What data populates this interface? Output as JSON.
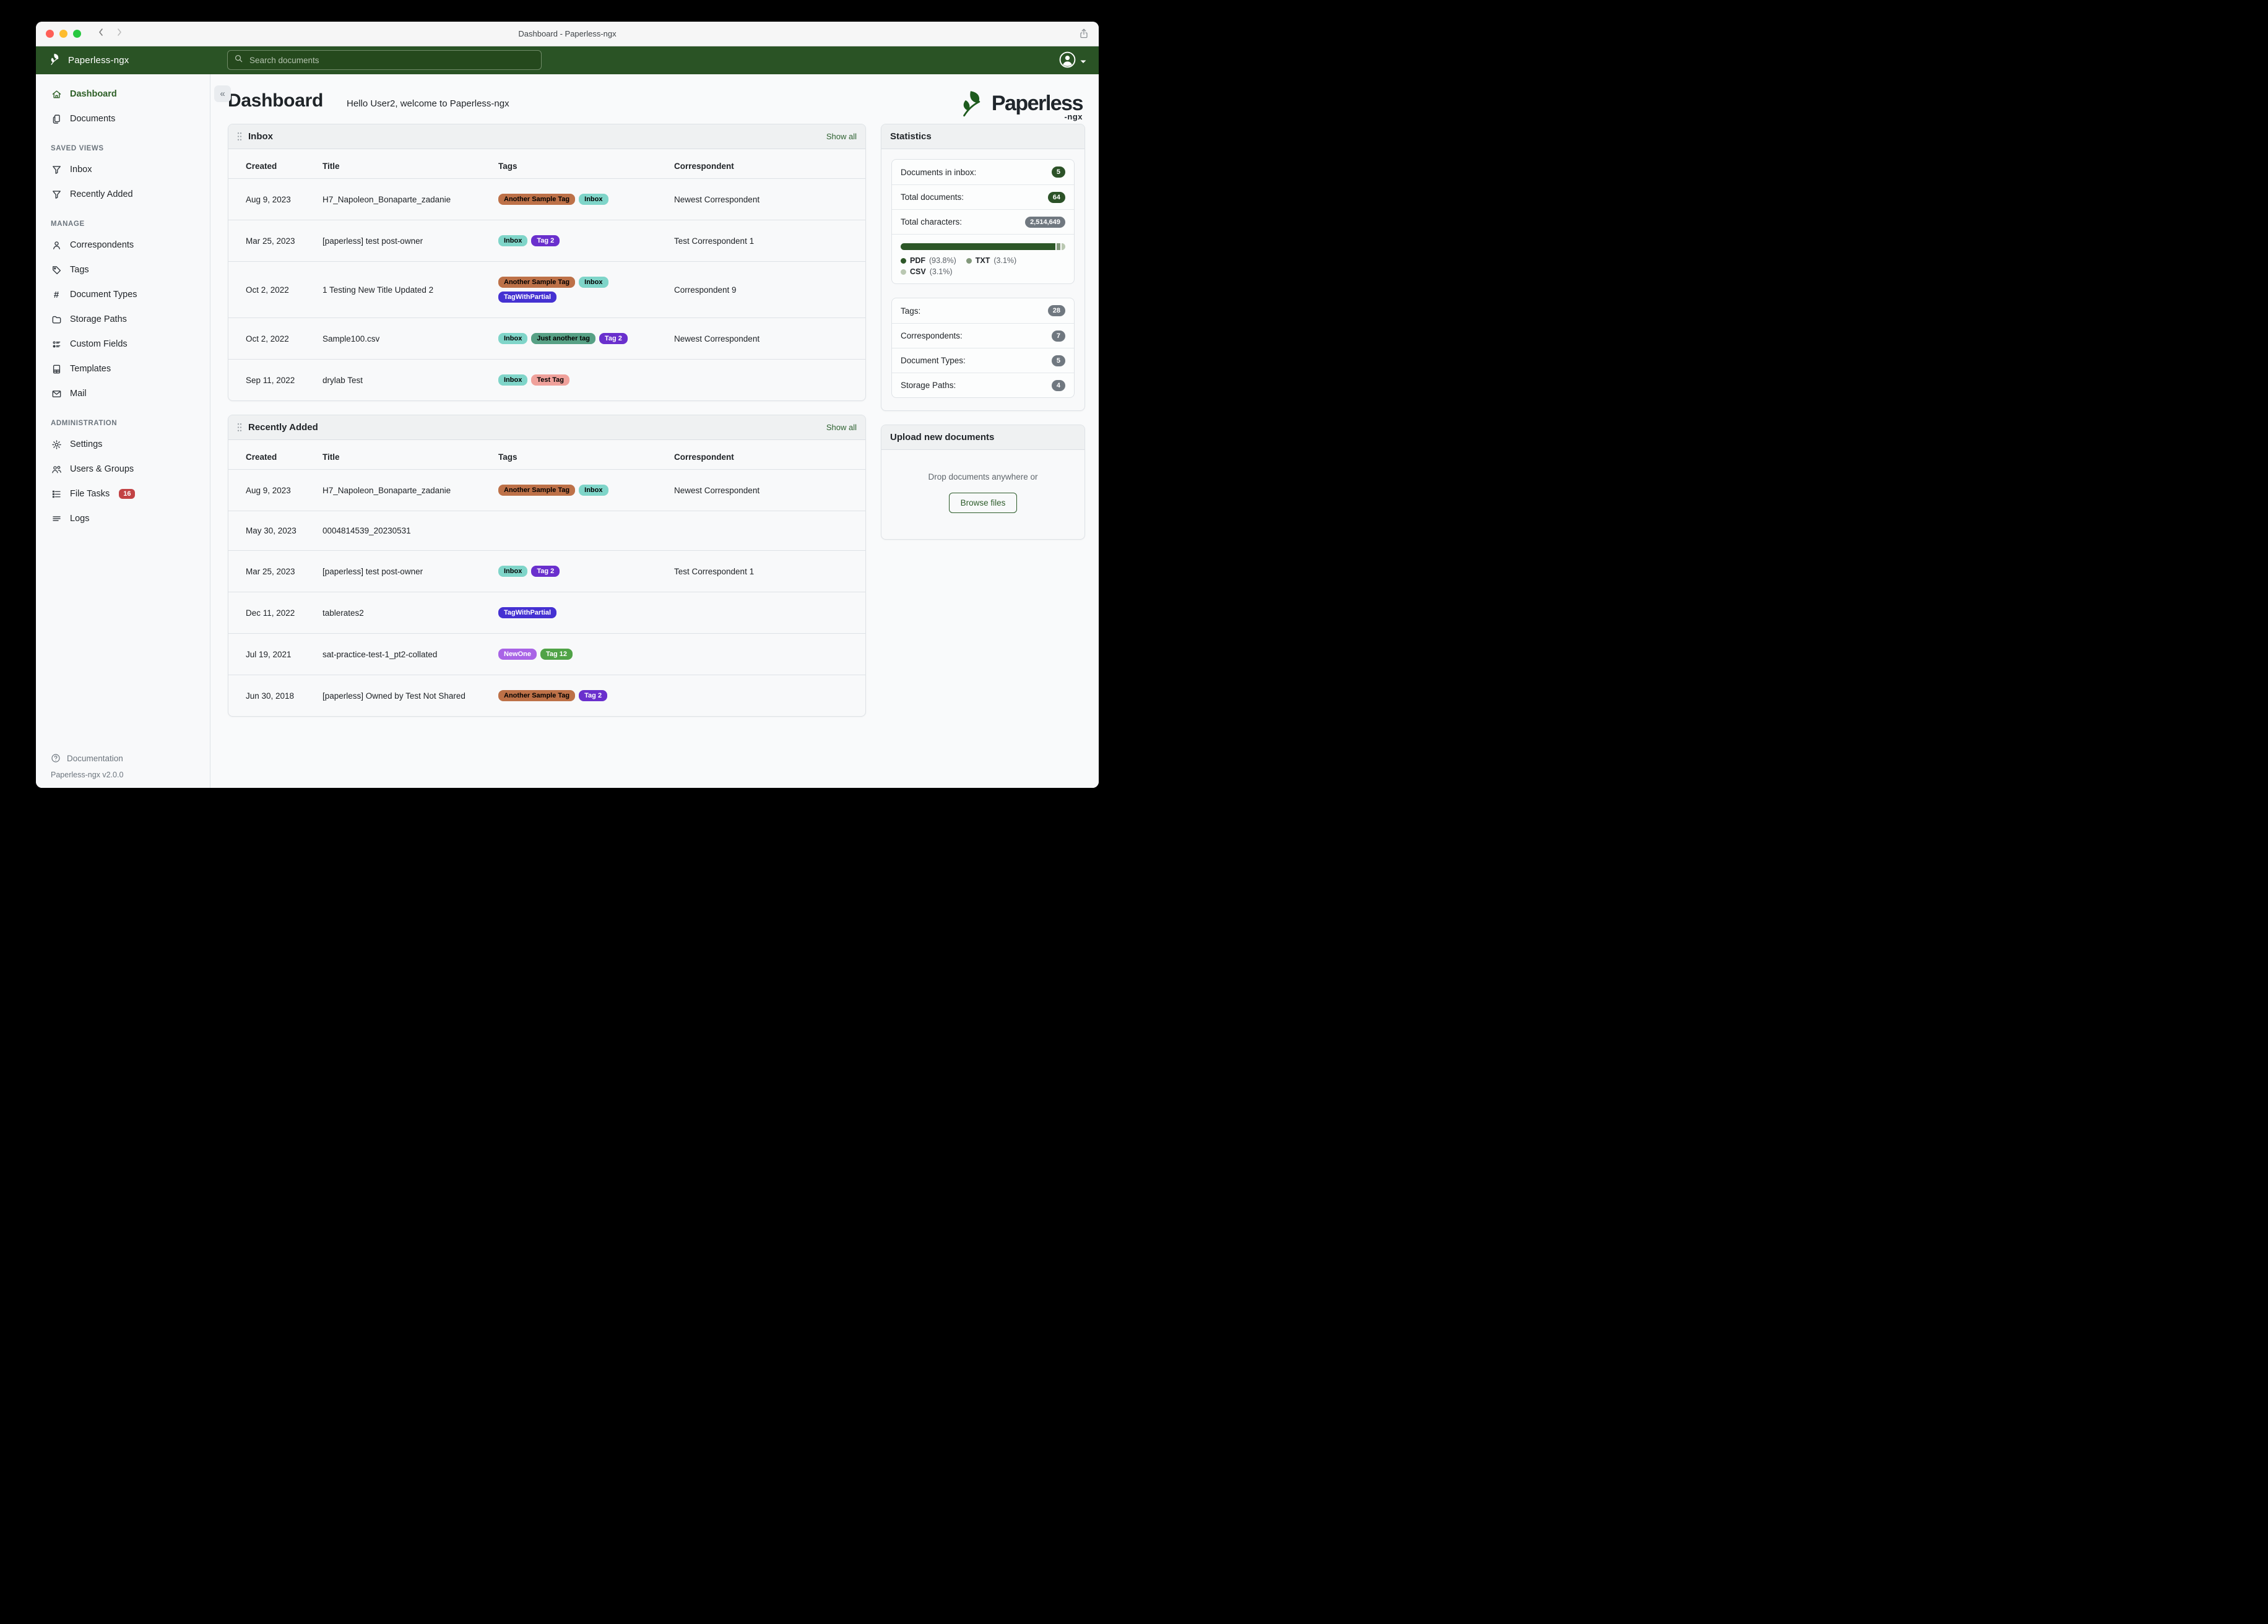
{
  "window": {
    "title": "Dashboard - Paperless-ngx"
  },
  "navbar": {
    "brand": "Paperless-ngx",
    "search_placeholder": "Search documents",
    "icons": [
      "leaf-logo-icon",
      "search-icon",
      "avatar-icon",
      "caret-down-icon"
    ]
  },
  "sidebar": {
    "groups": [
      {
        "heading": "",
        "items": [
          {
            "label": "Dashboard",
            "icon": "home-icon",
            "active": true
          },
          {
            "label": "Documents",
            "icon": "documents-icon",
            "active": false
          }
        ]
      },
      {
        "heading": "SAVED VIEWS",
        "items": [
          {
            "label": "Inbox",
            "icon": "filter-icon",
            "active": false
          },
          {
            "label": "Recently Added",
            "icon": "filter-icon",
            "active": false
          }
        ]
      },
      {
        "heading": "MANAGE",
        "items": [
          {
            "label": "Correspondents",
            "icon": "person-icon",
            "active": false
          },
          {
            "label": "Tags",
            "icon": "tag-icon",
            "active": false
          },
          {
            "label": "Document Types",
            "icon": "hash-icon",
            "active": false
          },
          {
            "label": "Storage Paths",
            "icon": "folder-icon",
            "active": false
          },
          {
            "label": "Custom Fields",
            "icon": "custom-fields-icon",
            "active": false
          },
          {
            "label": "Templates",
            "icon": "template-icon",
            "active": false
          },
          {
            "label": "Mail",
            "icon": "mail-icon",
            "active": false
          }
        ]
      },
      {
        "heading": "ADMINISTRATION",
        "items": [
          {
            "label": "Settings",
            "icon": "gear-icon",
            "active": false
          },
          {
            "label": "Users & Groups",
            "icon": "users-icon",
            "active": false
          },
          {
            "label": "File Tasks",
            "icon": "tasks-icon",
            "active": false,
            "badge": "16"
          },
          {
            "label": "Logs",
            "icon": "logs-icon",
            "active": false
          }
        ]
      }
    ],
    "footer": {
      "documentation": "Documentation",
      "icon": "question-icon",
      "version": "Paperless-ngx v2.0.0"
    }
  },
  "page": {
    "title": "Dashboard",
    "greeting": "Hello User2, welcome to Paperless-ngx"
  },
  "logo": {
    "main": "Paperless",
    "sub": "-ngx"
  },
  "cards": [
    {
      "title": "Inbox",
      "show_all": "Show all",
      "columns": [
        "Created",
        "Title",
        "Tags",
        "Correspondent"
      ],
      "rows": [
        {
          "created": "Aug 9, 2023",
          "title": "H7_Napoleon_Bonaparte_zadanie",
          "tags": [
            "Another Sample Tag",
            "Inbox"
          ],
          "correspondent": "Newest Correspondent"
        },
        {
          "created": "Mar 25, 2023",
          "title": "[paperless] test post-owner",
          "tags": [
            "Inbox",
            "Tag 2"
          ],
          "correspondent": "Test Correspondent 1"
        },
        {
          "created": "Oct 2, 2022",
          "title": "1 Testing New Title Updated 2",
          "tags": [
            "Another Sample Tag",
            "Inbox",
            "TagWithPartial"
          ],
          "correspondent": "Correspondent 9"
        },
        {
          "created": "Oct 2, 2022",
          "title": "Sample100.csv",
          "tags": [
            "Inbox",
            "Just another tag",
            "Tag 2"
          ],
          "correspondent": "Newest Correspondent"
        },
        {
          "created": "Sep 11, 2022",
          "title": "drylab Test",
          "tags": [
            "Inbox",
            "Test Tag"
          ],
          "correspondent": ""
        }
      ]
    },
    {
      "title": "Recently Added",
      "show_all": "Show all",
      "columns": [
        "Created",
        "Title",
        "Tags",
        "Correspondent"
      ],
      "rows": [
        {
          "created": "Aug 9, 2023",
          "title": "H7_Napoleon_Bonaparte_zadanie",
          "tags": [
            "Another Sample Tag",
            "Inbox"
          ],
          "correspondent": "Newest Correspondent"
        },
        {
          "created": "May 30, 2023",
          "title": "0004814539_20230531",
          "tags": [],
          "correspondent": ""
        },
        {
          "created": "Mar 25, 2023",
          "title": "[paperless] test post-owner",
          "tags": [
            "Inbox",
            "Tag 2"
          ],
          "correspondent": "Test Correspondent 1"
        },
        {
          "created": "Dec 11, 2022",
          "title": "tablerates2",
          "tags": [
            "TagWithPartial"
          ],
          "correspondent": ""
        },
        {
          "created": "Jul 19, 2021",
          "title": "sat-practice-test-1_pt2-collated",
          "tags": [
            "NewOne",
            "Tag 12"
          ],
          "correspondent": ""
        },
        {
          "created": "Jun 30, 2018",
          "title": "[paperless] Owned by Test Not Shared",
          "tags": [
            "Another Sample Tag",
            "Tag 2"
          ],
          "correspondent": ""
        }
      ]
    }
  ],
  "tag_colors": {
    "Another Sample Tag": {
      "bg": "#bd7148",
      "fg": "#000000"
    },
    "Inbox": {
      "bg": "#7fd5c9",
      "fg": "#000000"
    },
    "Tag 2": {
      "bg": "#6a30cd",
      "fg": "#ffffff"
    },
    "TagWithPartial": {
      "bg": "#4531d2",
      "fg": "#ffffff"
    },
    "Just another tag": {
      "bg": "#57a185",
      "fg": "#000000"
    },
    "Test Tag": {
      "bg": "#efa19b",
      "fg": "#000000"
    },
    "NewOne": {
      "bg": "#a964e6",
      "fg": "#ffffff"
    },
    "Tag 12": {
      "bg": "#50a347",
      "fg": "#ffffff"
    }
  },
  "statistics": {
    "title": "Statistics",
    "groups": [
      {
        "rows": [
          {
            "label": "Documents in inbox:",
            "value": "5",
            "badge": "green"
          },
          {
            "label": "Total documents:",
            "value": "64",
            "badge": "green"
          },
          {
            "label": "Total characters:",
            "value": "2,514,649",
            "badge": "gray"
          }
        ],
        "chart": {
          "type": "stacked-bar",
          "segments": [
            {
              "name": "PDF",
              "pct": "(93.8%)",
              "value": 93.8,
              "color": "#2d5728"
            },
            {
              "name": "TXT",
              "pct": "(3.1%)",
              "value": 3.1,
              "color": "#83997c"
            },
            {
              "name": "CSV",
              "pct": "(3.1%)",
              "value": 3.1,
              "color": "#bac8b2"
            }
          ]
        }
      },
      {
        "rows": [
          {
            "label": "Tags:",
            "value": "28",
            "badge": "gray"
          },
          {
            "label": "Correspondents:",
            "value": "7",
            "badge": "gray"
          },
          {
            "label": "Document Types:",
            "value": "5",
            "badge": "gray"
          },
          {
            "label": "Storage Paths:",
            "value": "4",
            "badge": "gray"
          }
        ]
      }
    ]
  },
  "upload": {
    "title": "Upload new documents",
    "hint": "Drop documents anywhere or",
    "button": "Browse files"
  },
  "colors": {
    "navbar_green": "#2a5325",
    "accent_green": "#2d5f26",
    "badge_green": "#2c5228",
    "badge_gray": "#707880",
    "file_tasks_badge": "#c24345"
  }
}
